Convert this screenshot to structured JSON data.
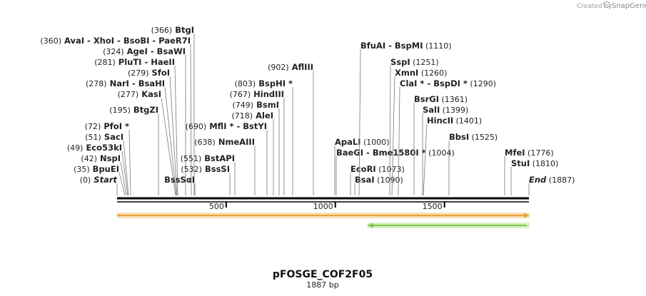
{
  "credit": {
    "prefix": "Created by",
    "brand": "SnapGene"
  },
  "map": {
    "name": "pFOSGE_COF2F05",
    "length_label": "1887 bp",
    "total_bp": 1887,
    "axis_ticks": [
      {
        "value": 500,
        "label": "500"
      },
      {
        "value": 1000,
        "label": "1000"
      },
      {
        "value": 1500,
        "label": "1500"
      }
    ],
    "features": [
      {
        "name": "forward-arrow",
        "start": 1,
        "end": 1887,
        "direction": "forward",
        "color": "#e8a33a",
        "glow": "#f6dfb4"
      },
      {
        "name": "reverse-arrow",
        "start": 1150,
        "end": 1887,
        "direction": "reverse",
        "color": "#7cc84b",
        "glow": "#d6f0c4"
      }
    ],
    "sites": [
      {
        "id": "end",
        "bp": 1887,
        "parts": [
          {
            "t": "End",
            "italic": true
          },
          {
            "t": "(1887)",
            "pos": true
          }
        ]
      },
      {
        "id": "start",
        "bp": 0,
        "parts": [
          {
            "t": "(0)",
            "pos": true
          },
          {
            "t": "Start",
            "italic": true
          }
        ]
      },
      {
        "id": "bpuei",
        "bp": 35,
        "parts": [
          {
            "t": "(35)",
            "pos": true
          },
          {
            "t": "BpuEI"
          }
        ]
      },
      {
        "id": "nspi",
        "bp": 42,
        "parts": [
          {
            "t": "(42)",
            "pos": true
          },
          {
            "t": "NspI"
          }
        ]
      },
      {
        "id": "eco53ki",
        "bp": 49,
        "parts": [
          {
            "t": "(49)",
            "pos": true
          },
          {
            "t": "Eco53kI"
          }
        ]
      },
      {
        "id": "saci",
        "bp": 51,
        "parts": [
          {
            "t": "(51)",
            "pos": true
          },
          {
            "t": "SacI"
          }
        ]
      },
      {
        "id": "pfoi",
        "bp": 72,
        "parts": [
          {
            "t": "(72)",
            "pos": true
          },
          {
            "t": "PfoI *"
          }
        ]
      },
      {
        "id": "btgzi",
        "bp": 195,
        "parts": [
          {
            "t": "(195)",
            "pos": true
          },
          {
            "t": "BtgZI"
          }
        ]
      },
      {
        "id": "kasi",
        "bp": 277,
        "parts": [
          {
            "t": "(277)",
            "pos": true
          },
          {
            "t": "KasI"
          }
        ]
      },
      {
        "id": "nari",
        "bp": 278,
        "parts": [
          {
            "t": "(278)",
            "pos": true
          },
          {
            "t": "NarI"
          },
          {
            "t": "-",
            "sep": true
          },
          {
            "t": "BsaHI"
          }
        ]
      },
      {
        "id": "sfoi",
        "bp": 279,
        "parts": [
          {
            "t": "(279)",
            "pos": true
          },
          {
            "t": "SfoI"
          }
        ]
      },
      {
        "id": "pluti",
        "bp": 281,
        "parts": [
          {
            "t": "(281)",
            "pos": true
          },
          {
            "t": "PluTI"
          },
          {
            "t": "-",
            "sep": true
          },
          {
            "t": "HaeII"
          }
        ]
      },
      {
        "id": "agei",
        "bp": 324,
        "parts": [
          {
            "t": "(324)",
            "pos": true
          },
          {
            "t": "AgeI"
          },
          {
            "t": "-",
            "sep": true
          },
          {
            "t": "BsaWI"
          }
        ]
      },
      {
        "id": "avai",
        "bp": 360,
        "parts": [
          {
            "t": "(360)",
            "pos": true
          },
          {
            "t": "AvaI"
          },
          {
            "t": "-",
            "sep": true
          },
          {
            "t": "XhoI"
          },
          {
            "t": "-",
            "sep": true
          },
          {
            "t": "BsoBI"
          },
          {
            "t": "-",
            "sep": true
          },
          {
            "t": "PaeR7I"
          }
        ]
      },
      {
        "id": "btgi",
        "bp": 366,
        "parts": [
          {
            "t": "(366)",
            "pos": true
          },
          {
            "t": "BtgI"
          }
        ]
      },
      {
        "id": "bsssai",
        "bp": 370,
        "parts": [
          {
            "t": "BssSαI"
          }
        ]
      },
      {
        "id": "bsssi",
        "bp": 532,
        "parts": [
          {
            "t": "(532)",
            "pos": true
          },
          {
            "t": "BssSI"
          }
        ]
      },
      {
        "id": "bstapi",
        "bp": 551,
        "parts": [
          {
            "t": "(551)",
            "pos": true
          },
          {
            "t": "BstAPI"
          }
        ]
      },
      {
        "id": "nmeaiii",
        "bp": 638,
        "parts": [
          {
            "t": "(638)",
            "pos": true
          },
          {
            "t": "NmeAIII"
          }
        ]
      },
      {
        "id": "mfli",
        "bp": 690,
        "parts": [
          {
            "t": "(690)",
            "pos": true
          },
          {
            "t": "MflI *"
          },
          {
            "t": "-",
            "sep": true
          },
          {
            "t": "BstYI"
          }
        ]
      },
      {
        "id": "alei",
        "bp": 718,
        "parts": [
          {
            "t": "(718)",
            "pos": true
          },
          {
            "t": "AleI"
          }
        ]
      },
      {
        "id": "bsmi",
        "bp": 749,
        "parts": [
          {
            "t": "(749)",
            "pos": true
          },
          {
            "t": "BsmI"
          }
        ]
      },
      {
        "id": "hindiii",
        "bp": 767,
        "parts": [
          {
            "t": "(767)",
            "pos": true
          },
          {
            "t": "HindIII"
          }
        ]
      },
      {
        "id": "bsphi",
        "bp": 803,
        "parts": [
          {
            "t": "(803)",
            "pos": true
          },
          {
            "t": "BspHI *"
          }
        ]
      },
      {
        "id": "afliii",
        "bp": 902,
        "parts": [
          {
            "t": "(902)",
            "pos": true
          },
          {
            "t": "AflIII"
          }
        ]
      },
      {
        "id": "apali",
        "bp": 1000,
        "parts": [
          {
            "t": "ApaLI"
          },
          {
            "t": "(1000)",
            "pos": true
          }
        ]
      },
      {
        "id": "baegi",
        "bp": 1004,
        "parts": [
          {
            "t": "BaeGI"
          },
          {
            "t": "-",
            "sep": true
          },
          {
            "t": "Bme1580I *"
          },
          {
            "t": "(1004)",
            "pos": true
          }
        ]
      },
      {
        "id": "ecori",
        "bp": 1073,
        "parts": [
          {
            "t": "EcoRI"
          },
          {
            "t": "(1073)",
            "pos": true
          }
        ]
      },
      {
        "id": "bsai",
        "bp": 1090,
        "parts": [
          {
            "t": "BsaI"
          },
          {
            "t": "(1090)",
            "pos": true
          }
        ]
      },
      {
        "id": "bfuai",
        "bp": 1110,
        "parts": [
          {
            "t": "BfuAI"
          },
          {
            "t": "-",
            "sep": true
          },
          {
            "t": "BspMI"
          },
          {
            "t": "(1110)",
            "pos": true
          }
        ]
      },
      {
        "id": "sspi",
        "bp": 1251,
        "parts": [
          {
            "t": "SspI"
          },
          {
            "t": "(1251)",
            "pos": true
          }
        ]
      },
      {
        "id": "xmni",
        "bp": 1260,
        "parts": [
          {
            "t": "XmnI"
          },
          {
            "t": "(1260)",
            "pos": true
          }
        ]
      },
      {
        "id": "clai",
        "bp": 1290,
        "parts": [
          {
            "t": "ClaI *"
          },
          {
            "t": "-",
            "sep": true
          },
          {
            "t": "BspDI *"
          },
          {
            "t": "(1290)",
            "pos": true
          }
        ]
      },
      {
        "id": "bsrgi",
        "bp": 1361,
        "parts": [
          {
            "t": "BsrGI"
          },
          {
            "t": "(1361)",
            "pos": true
          }
        ]
      },
      {
        "id": "sali",
        "bp": 1399,
        "parts": [
          {
            "t": "SalI"
          },
          {
            "t": "(1399)",
            "pos": true
          }
        ]
      },
      {
        "id": "hincii",
        "bp": 1401,
        "parts": [
          {
            "t": "HincII"
          },
          {
            "t": "(1401)",
            "pos": true
          }
        ]
      },
      {
        "id": "bbsi",
        "bp": 1525,
        "parts": [
          {
            "t": "BbsI"
          },
          {
            "t": "(1525)",
            "pos": true
          }
        ]
      },
      {
        "id": "mfei",
        "bp": 1776,
        "parts": [
          {
            "t": "MfeI"
          },
          {
            "t": "(1776)",
            "pos": true
          }
        ]
      },
      {
        "id": "stui",
        "bp": 1810,
        "parts": [
          {
            "t": "StuI"
          },
          {
            "t": "(1810)",
            "pos": true
          }
        ]
      }
    ]
  }
}
